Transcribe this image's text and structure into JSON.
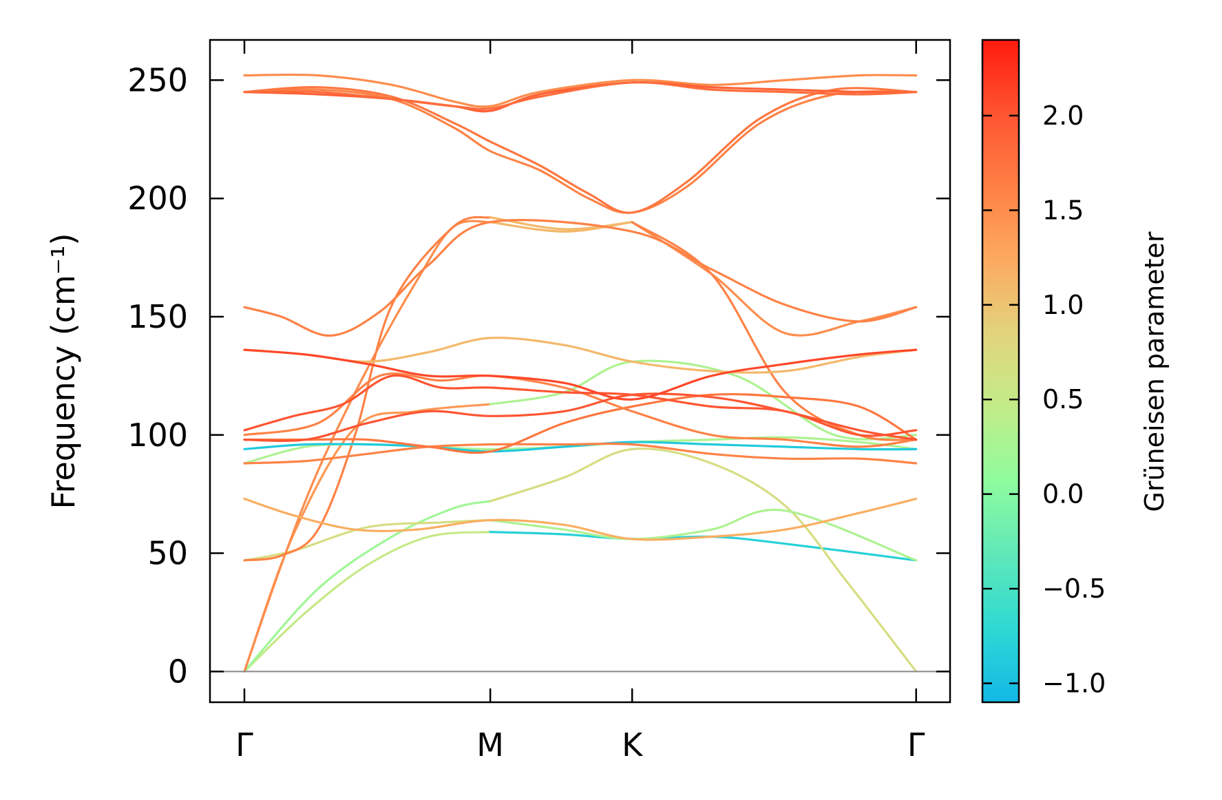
{
  "chart_data": {
    "type": "line",
    "title": "",
    "xlabel": "",
    "ylabel": "Frequency (cm⁻¹)",
    "ylim": [
      -13,
      267
    ],
    "yticks": [
      0,
      50,
      100,
      150,
      200,
      250
    ],
    "xticks": [
      {
        "label": "Γ",
        "x": 0.0
      },
      {
        "label": "M",
        "x": 1.0
      },
      {
        "label": "K",
        "x": 1.577
      },
      {
        "label": "Γ",
        "x": 2.732
      }
    ],
    "xlim": [
      -0.14,
      2.87
    ],
    "grid": false,
    "colorbar": {
      "label": "Grüneisen parameter",
      "range": [
        -1.1,
        2.4
      ],
      "ticks": [
        {
          "value": -1.0,
          "label": "−1.0"
        },
        {
          "value": -0.5,
          "label": "−0.5"
        },
        {
          "value": 0.0,
          "label": "0.0"
        },
        {
          "value": 0.5,
          "label": "0.5"
        },
        {
          "value": 1.0,
          "label": "1.0"
        },
        {
          "value": 1.5,
          "label": "1.5"
        },
        {
          "value": 2.0,
          "label": "2.0"
        }
      ],
      "colormap": [
        "#12b8e6",
        "#2ed9d3",
        "#5fe8b8",
        "#8efc9e",
        "#c2ec88",
        "#e2d47d",
        "#fcaa60",
        "#fe8044",
        "#fe5431",
        "#ff1b0e"
      ]
    },
    "series": [
      {
        "segments": [
          {
            "x": [
              0,
              0.25,
              0.5,
              0.75,
              1.0
            ],
            "y": [
              0,
              25,
              45,
              57,
              59
            ],
            "g": 0.5
          },
          {
            "x": [
              1.0,
              1.3,
              1.577,
              1.9,
              2.2,
              2.732
            ],
            "y": [
              59,
              58,
              56,
              57,
              54,
              47
            ],
            "g": -0.8
          }
        ]
      },
      {
        "segments": [
          {
            "x": [
              0,
              0.3,
              0.6,
              0.85,
              1.0
            ],
            "y": [
              0,
              35,
              57,
              69,
              72
            ],
            "g": 0.2
          },
          {
            "x": [
              1.0,
              1.3,
              1.577,
              1.9,
              2.2,
              2.45,
              2.732
            ],
            "y": [
              72,
              82,
              94,
              88,
              70,
              38,
              0
            ],
            "g": 0.7
          }
        ]
      },
      {
        "segments": [
          {
            "x": [
              0,
              0.2,
              0.5,
              0.8,
              1.0
            ],
            "y": [
              47,
              51,
              61,
              63,
              64
            ],
            "g": 0.7
          },
          {
            "x": [
              1.0,
              1.3,
              1.577,
              1.9,
              2.2,
              2.732
            ],
            "y": [
              64,
              60,
              56,
              60,
              68,
              47
            ],
            "g": 0.3
          }
        ]
      },
      {
        "segments": [
          {
            "x": [
              0,
              0.2,
              0.45,
              0.7,
              1.0
            ],
            "y": [
              0,
              58,
              103,
              110,
              113
            ],
            "g": 1.4
          },
          {
            "x": [
              1.0,
              1.3,
              1.577,
              2.0,
              2.4,
              2.732
            ],
            "y": [
              113,
              118,
              131,
              125,
              100,
              100
            ],
            "g": 0.3
          }
        ]
      },
      {
        "segments": [
          {
            "x": [
              0,
              0.15,
              0.3,
              0.5,
              0.7,
              0.85,
              1.0
            ],
            "y": [
              0,
              45,
              85,
              128,
              165,
              188,
              190
            ],
            "g": 1.5
          },
          {
            "x": [
              1.0,
              1.3,
              1.577
            ],
            "y": [
              190,
              186,
              190
            ],
            "g": 1.1
          },
          {
            "x": [
              1.577,
              1.9,
              2.2,
              2.5,
              2.732
            ],
            "y": [
              190,
              168,
              143,
              148,
              154
            ],
            "g": 1.5
          }
        ]
      },
      {
        "segments": [
          {
            "x": [
              0,
              0.15,
              0.3,
              0.45,
              0.6,
              0.85,
              1.0
            ],
            "y": [
              47,
              49,
              60,
              100,
              155,
              188,
              192
            ],
            "g": 1.6
          },
          {
            "x": [
              1.0,
              1.3,
              1.577
            ],
            "y": [
              192,
              187,
              190
            ],
            "g": 1.1
          },
          {
            "x": [
              1.577,
              1.9,
              2.2,
              2.5,
              2.732
            ],
            "y": [
              190,
              168,
              118,
              100,
              98
            ],
            "g": 1.6
          }
        ]
      },
      {
        "segments": [
          {
            "x": [
              0,
              0.2,
              0.45,
              0.7,
              1.0,
              1.3,
              1.577,
              1.9,
              2.2,
              2.5,
              2.732
            ],
            "y": [
              73,
              66,
              60,
              60,
              64,
              62,
              56,
              57,
              60,
              67,
              73
            ],
            "g": 1.2
          }
        ]
      },
      {
        "segments": [
          {
            "x": [
              0,
              0.25,
              0.5,
              0.75,
              1.0,
              1.3,
              1.577,
              1.9,
              2.2,
              2.5,
              2.732
            ],
            "y": [
              88,
              95,
              96,
              95,
              94,
              95,
              97,
              98,
              99,
              97,
              94
            ],
            "g": 0.3
          }
        ]
      },
      {
        "segments": [
          {
            "x": [
              0,
              0.25,
              0.5,
              0.75,
              1.0,
              1.3,
              1.577,
              1.9,
              2.2,
              2.5,
              2.732
            ],
            "y": [
              94,
              96,
              96,
              95,
              93,
              95,
              97,
              96,
              95,
              94,
              94
            ],
            "g": -0.9
          }
        ]
      },
      {
        "segments": [
          {
            "x": [
              0,
              0.25,
              0.5,
              0.75,
              1.0,
              1.3,
              1.577,
              1.9,
              2.2,
              2.5,
              2.732
            ],
            "y": [
              88,
              89,
              92,
              95,
              96,
              96,
              96,
              92,
              90,
              90,
              88
            ],
            "g": 1.6
          }
        ]
      },
      {
        "segments": [
          {
            "x": [
              0,
              0.25,
              0.5,
              0.75,
              1.0,
              1.3,
              1.577,
              1.9,
              2.2,
              2.5,
              2.732
            ],
            "y": [
              98,
              98,
              98,
              95,
              93,
              105,
              112,
              117,
              116,
              112,
              98
            ],
            "g": 1.7
          }
        ]
      },
      {
        "segments": [
          {
            "x": [
              0,
              0.3,
              0.55,
              0.8,
              1.0,
              1.3,
              1.577,
              1.9,
              2.2,
              2.5,
              2.732
            ],
            "y": [
              100,
              105,
              125,
              123,
              125,
              120,
              110,
              100,
              98,
              95,
              98
            ],
            "g": 1.6
          }
        ]
      },
      {
        "segments": [
          {
            "x": [
              0,
              0.2,
              0.4,
              0.6,
              0.8,
              1.0,
              1.3,
              1.577,
              1.9,
              2.2,
              2.5,
              2.732
            ],
            "y": [
              102,
              108,
              113,
              125,
              120,
              120,
              118,
              117,
              112,
              110,
              100,
              102
            ],
            "g": 2.0
          }
        ]
      },
      {
        "segments": [
          {
            "x": [
              0,
              0.25,
              0.5,
              0.75,
              1.0,
              1.3,
              1.577,
              1.9,
              2.2,
              2.5,
              2.732
            ],
            "y": [
              98,
              98,
              105,
              110,
              108,
              110,
              117,
              116,
              110,
              102,
              98
            ],
            "g": 2.0
          }
        ]
      },
      {
        "segments": [
          {
            "x": [
              0,
              0.25,
              0.5,
              0.75,
              1.0,
              1.3,
              1.577,
              1.9,
              2.2,
              2.5,
              2.732
            ],
            "y": [
              136,
              134,
              131,
              135,
              141,
              138,
              131,
              127,
              127,
              133,
              136
            ],
            "g": 1.1
          }
        ]
      },
      {
        "segments": [
          {
            "x": [
              0,
              0.25,
              0.5,
              0.75,
              1.0,
              1.3,
              1.577,
              1.9,
              2.2,
              2.5,
              2.732
            ],
            "y": [
              136,
              134,
              130,
              125,
              125,
              122,
              115,
              125,
              130,
              134,
              136
            ],
            "g": 2.1
          }
        ]
      },
      {
        "segments": [
          {
            "x": [
              0,
              0.15,
              0.35,
              0.55,
              0.75,
              1.0,
              1.577,
              1.9,
              2.2,
              2.5,
              2.732
            ],
            "y": [
              154,
              150,
              142,
              152,
              172,
              190,
              186,
              170,
              155,
              148,
              154
            ],
            "g": 1.6
          }
        ]
      },
      {
        "segments": [
          {
            "x": [
              0,
              0.3,
              0.6,
              0.85,
              1.0,
              1.2,
              1.4,
              1.577,
              1.8,
              2.1,
              2.4,
              2.732
            ],
            "y": [
              245,
              246,
              242,
              230,
              220,
              212,
              200,
              194,
              205,
              232,
              244,
              245
            ],
            "g": 1.6
          }
        ]
      },
      {
        "segments": [
          {
            "x": [
              0,
              0.3,
              0.6,
              0.85,
              1.0,
              1.2,
              1.4,
              1.577,
              1.8,
              2.1,
              2.4,
              2.732
            ],
            "y": [
              245,
              247,
              243,
              232,
              224,
              214,
              202,
              194,
              207,
              234,
              246,
              245
            ],
            "g": 1.7
          }
        ]
      },
      {
        "segments": [
          {
            "x": [
              0,
              0.3,
              0.6,
              0.85,
              1.0,
              1.2,
              1.577,
              1.9,
              2.2,
              2.5,
              2.732
            ],
            "y": [
              252,
              252,
              248,
              241,
              239,
              245,
              250,
              248,
              250,
              252,
              252
            ],
            "g": 1.5
          }
        ]
      },
      {
        "segments": [
          {
            "x": [
              0,
              0.3,
              0.6,
              0.85,
              1.0,
              1.2,
              1.577,
              1.9,
              2.2,
              2.5,
              2.732
            ],
            "y": [
              245,
              244,
              242,
              239,
              237,
              244,
              249,
              247,
              246,
              245,
              245
            ],
            "g": 1.9
          }
        ]
      },
      {
        "segments": [
          {
            "x": [
              0,
              0.3,
              0.6,
              0.85,
              1.0,
              1.2,
              1.577,
              1.9,
              2.2,
              2.5,
              2.732
            ],
            "y": [
              245,
              245,
              242,
              239,
              238,
              243,
              249,
              246,
              245,
              244,
              245
            ],
            "g": 1.8
          }
        ]
      }
    ]
  }
}
